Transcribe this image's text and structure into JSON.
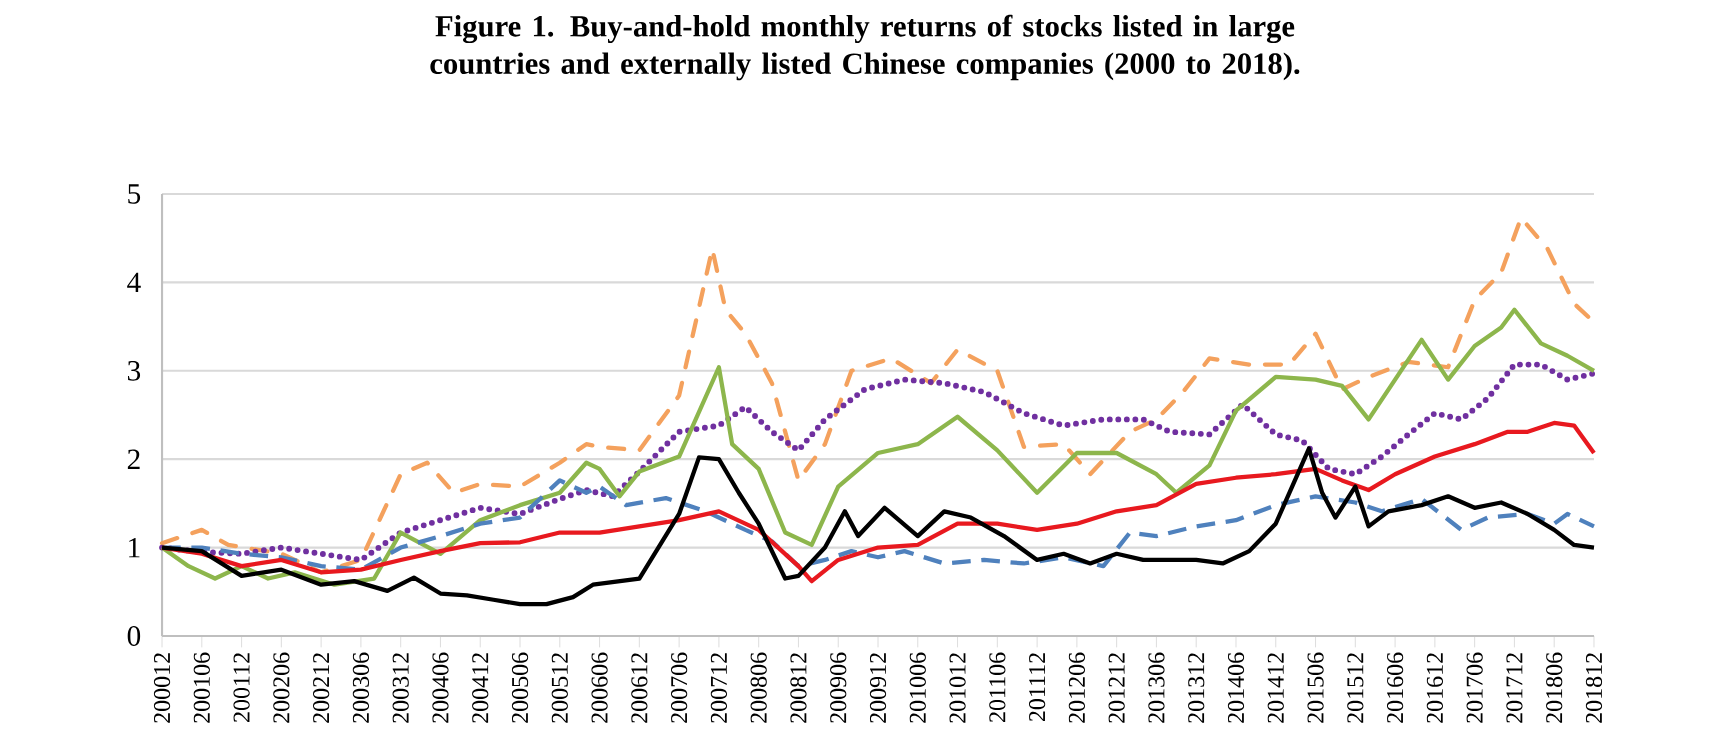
{
  "chart_data": {
    "type": "line",
    "title": "Figure 1. Buy-and-hold monthly returns of stocks listed in large countries and externally listed Chinese companies (2000 to 2018).",
    "xlim": [
      "2000-12",
      "2018-12"
    ],
    "xticks": [
      {
        "value": "2000-12",
        "label": "200012"
      },
      {
        "value": "2001-06",
        "label": "200106"
      },
      {
        "value": "2001-12",
        "label": "200112"
      },
      {
        "value": "2002-06",
        "label": "200206"
      },
      {
        "value": "2002-12",
        "label": "200212"
      },
      {
        "value": "2003-06",
        "label": "200306"
      },
      {
        "value": "2003-12",
        "label": "200312"
      },
      {
        "value": "2004-06",
        "label": "200406"
      },
      {
        "value": "2004-12",
        "label": "200412"
      },
      {
        "value": "2005-06",
        "label": "200506"
      },
      {
        "value": "2005-12",
        "label": "200512"
      },
      {
        "value": "2006-06",
        "label": "200606"
      },
      {
        "value": "2006-12",
        "label": "200612"
      },
      {
        "value": "2007-06",
        "label": "200706"
      },
      {
        "value": "2007-12",
        "label": "200712"
      },
      {
        "value": "2008-06",
        "label": "200806"
      },
      {
        "value": "2008-12",
        "label": "200812"
      },
      {
        "value": "2009-06",
        "label": "200906"
      },
      {
        "value": "2009-12",
        "label": "200912"
      },
      {
        "value": "2010-06",
        "label": "201006"
      },
      {
        "value": "2010-12",
        "label": "201012"
      },
      {
        "value": "2011-06",
        "label": "201106"
      },
      {
        "value": "2011-12",
        "label": "201112"
      },
      {
        "value": "2012-06",
        "label": "201206"
      },
      {
        "value": "2012-12",
        "label": "201212"
      },
      {
        "value": "2013-06",
        "label": "201306"
      },
      {
        "value": "2013-12",
        "label": "201312"
      },
      {
        "value": "2014-06",
        "label": "201406"
      },
      {
        "value": "2014-12",
        "label": "201412"
      },
      {
        "value": "2015-06",
        "label": "201506"
      },
      {
        "value": "2015-12",
        "label": "201512"
      },
      {
        "value": "2016-06",
        "label": "201606"
      },
      {
        "value": "2016-12",
        "label": "201612"
      },
      {
        "value": "2017-06",
        "label": "201706"
      },
      {
        "value": "2017-12",
        "label": "201712"
      },
      {
        "value": "2018-06",
        "label": "201806"
      },
      {
        "value": "2018-12",
        "label": "201812"
      }
    ],
    "ylim": [
      0,
      5
    ],
    "yticks": [
      0,
      1,
      2,
      3,
      4,
      5
    ],
    "grid": "y",
    "marker": "none",
    "series": [
      {
        "color": "#f4a15d",
        "line_style": "dashdot",
        "x": [
          "2000-12",
          "2001-06",
          "2001-10",
          "2002-06",
          "2002-12",
          "2003-06",
          "2003-12",
          "2004-04",
          "2004-08",
          "2004-12",
          "2005-06",
          "2005-12",
          "2006-04",
          "2006-06",
          "2006-12",
          "2007-06",
          "2007-11",
          "2008-01",
          "2008-04",
          "2008-08",
          "2008-12",
          "2009-04",
          "2009-08",
          "2010-02",
          "2010-08",
          "2010-12",
          "2011-06",
          "2011-10",
          "2012-04",
          "2012-08",
          "2013-02",
          "2013-06",
          "2013-10",
          "2014-02",
          "2014-08",
          "2015-02",
          "2015-06",
          "2015-10",
          "2016-02",
          "2016-08",
          "2017-02",
          "2017-06",
          "2017-10",
          "2018-01",
          "2018-05",
          "2018-09",
          "2018-12"
        ],
        "values": [
          1.05,
          1.2,
          1.03,
          0.93,
          0.72,
          0.86,
          1.83,
          1.96,
          1.62,
          1.72,
          1.69,
          1.96,
          2.17,
          2.14,
          2.1,
          2.72,
          4.38,
          3.69,
          3.42,
          2.86,
          1.76,
          2.17,
          3.0,
          3.14,
          2.86,
          3.24,
          3.0,
          2.14,
          2.17,
          1.83,
          2.31,
          2.45,
          2.76,
          3.14,
          3.07,
          3.07,
          3.42,
          2.79,
          2.93,
          3.1,
          3.04,
          3.8,
          4.11,
          4.73,
          4.38,
          3.76,
          3.55
        ]
      },
      {
        "color": "#7030a0",
        "line_style": "dotted",
        "x": [
          "2000-12",
          "2001-06",
          "2001-12",
          "2002-06",
          "2002-12",
          "2003-06",
          "2003-12",
          "2004-06",
          "2004-12",
          "2005-06",
          "2005-12",
          "2006-04",
          "2006-08",
          "2006-12",
          "2007-06",
          "2007-12",
          "2008-04",
          "2008-08",
          "2008-12",
          "2009-04",
          "2009-10",
          "2010-04",
          "2010-10",
          "2011-04",
          "2011-10",
          "2012-04",
          "2012-10",
          "2013-04",
          "2013-08",
          "2014-02",
          "2014-07",
          "2014-12",
          "2015-04",
          "2015-08",
          "2015-12",
          "2016-04",
          "2016-08",
          "2016-12",
          "2017-04",
          "2017-08",
          "2017-12",
          "2018-04",
          "2018-08",
          "2018-12"
        ],
        "values": [
          1.0,
          0.95,
          0.93,
          1.0,
          0.93,
          0.86,
          1.17,
          1.31,
          1.45,
          1.38,
          1.55,
          1.65,
          1.58,
          1.86,
          2.31,
          2.38,
          2.59,
          2.31,
          2.1,
          2.45,
          2.79,
          2.9,
          2.86,
          2.76,
          2.52,
          2.38,
          2.45,
          2.45,
          2.31,
          2.28,
          2.62,
          2.28,
          2.21,
          1.89,
          1.83,
          2.03,
          2.28,
          2.52,
          2.45,
          2.69,
          3.07,
          3.07,
          2.9,
          2.97
        ]
      },
      {
        "color": "#8db64c",
        "line_style": "solid",
        "x": [
          "2000-12",
          "2001-04",
          "2001-08",
          "2001-12",
          "2002-04",
          "2002-08",
          "2003-02",
          "2003-08",
          "2003-12",
          "2004-06",
          "2004-12",
          "2005-06",
          "2005-12",
          "2006-04",
          "2006-06",
          "2006-09",
          "2006-12",
          "2007-06",
          "2007-12",
          "2008-02",
          "2008-06",
          "2008-10",
          "2009-02",
          "2009-06",
          "2009-12",
          "2010-06",
          "2010-12",
          "2011-06",
          "2011-12",
          "2012-06",
          "2012-12",
          "2013-06",
          "2013-09",
          "2014-02",
          "2014-06",
          "2014-12",
          "2015-06",
          "2015-10",
          "2016-02",
          "2016-06",
          "2016-10",
          "2017-02",
          "2017-06",
          "2017-10",
          "2017-12",
          "2018-04",
          "2018-08",
          "2018-12"
        ],
        "values": [
          1.0,
          0.79,
          0.65,
          0.79,
          0.65,
          0.72,
          0.58,
          0.65,
          1.17,
          0.93,
          1.31,
          1.48,
          1.62,
          1.96,
          1.89,
          1.58,
          1.86,
          2.03,
          3.04,
          2.17,
          1.89,
          1.17,
          1.03,
          1.69,
          2.07,
          2.17,
          2.48,
          2.1,
          1.62,
          2.07,
          2.07,
          1.83,
          1.62,
          1.93,
          2.55,
          2.93,
          2.9,
          2.83,
          2.45,
          2.9,
          3.35,
          2.9,
          3.28,
          3.49,
          3.69,
          3.31,
          3.17,
          3.0
        ]
      },
      {
        "color": "#4f81bd",
        "line_style": "dashed",
        "x": [
          "2000-12",
          "2001-06",
          "2001-12",
          "2002-06",
          "2002-12",
          "2003-06",
          "2003-12",
          "2004-06",
          "2004-12",
          "2005-06",
          "2005-12",
          "2006-04",
          "2006-06",
          "2006-10",
          "2007-04",
          "2007-10",
          "2008-04",
          "2008-08",
          "2008-12",
          "2009-04",
          "2009-08",
          "2009-12",
          "2010-04",
          "2010-10",
          "2011-04",
          "2011-10",
          "2012-04",
          "2012-10",
          "2013-02",
          "2013-06",
          "2013-12",
          "2014-06",
          "2014-12",
          "2015-06",
          "2015-12",
          "2016-04",
          "2016-10",
          "2017-04",
          "2017-08",
          "2018-02",
          "2018-06",
          "2018-08",
          "2018-12"
        ],
        "values": [
          1.0,
          1.0,
          0.93,
          0.89,
          0.79,
          0.75,
          1.0,
          1.13,
          1.27,
          1.34,
          1.76,
          1.62,
          1.69,
          1.48,
          1.56,
          1.41,
          1.2,
          1.07,
          0.79,
          0.86,
          0.96,
          0.89,
          0.96,
          0.82,
          0.86,
          0.82,
          0.89,
          0.79,
          1.17,
          1.13,
          1.24,
          1.31,
          1.48,
          1.58,
          1.51,
          1.41,
          1.55,
          1.2,
          1.34,
          1.38,
          1.27,
          1.38,
          1.24
        ]
      },
      {
        "color": "#e8191f",
        "line_style": "solid",
        "x": [
          "2000-12",
          "2001-06",
          "2001-12",
          "2002-06",
          "2002-12",
          "2003-06",
          "2003-12",
          "2004-06",
          "2004-12",
          "2005-06",
          "2005-12",
          "2006-06",
          "2006-12",
          "2007-06",
          "2007-12",
          "2008-06",
          "2008-12",
          "2009-02",
          "2009-06",
          "2009-12",
          "2010-06",
          "2010-12",
          "2011-06",
          "2011-12",
          "2012-06",
          "2012-12",
          "2013-06",
          "2013-12",
          "2014-06",
          "2014-12",
          "2015-06",
          "2015-10",
          "2016-02",
          "2016-06",
          "2016-12",
          "2017-06",
          "2017-11",
          "2018-02",
          "2018-06",
          "2018-09",
          "2018-12"
        ],
        "values": [
          1.0,
          0.93,
          0.79,
          0.86,
          0.72,
          0.75,
          0.86,
          0.96,
          1.05,
          1.06,
          1.17,
          1.17,
          1.24,
          1.31,
          1.41,
          1.2,
          0.79,
          0.62,
          0.86,
          1.0,
          1.03,
          1.27,
          1.27,
          1.2,
          1.27,
          1.41,
          1.48,
          1.72,
          1.79,
          1.83,
          1.89,
          1.76,
          1.65,
          1.83,
          2.03,
          2.17,
          2.31,
          2.31,
          2.41,
          2.38,
          2.07
        ]
      },
      {
        "color": "#000000",
        "line_style": "solid",
        "x": [
          "2000-12",
          "2001-06",
          "2001-12",
          "2002-06",
          "2002-12",
          "2003-05",
          "2003-10",
          "2004-02",
          "2004-06",
          "2004-10",
          "2005-02",
          "2005-06",
          "2005-10",
          "2006-02",
          "2006-05",
          "2006-12",
          "2007-06",
          "2007-09",
          "2007-12",
          "2008-03",
          "2008-06",
          "2008-10",
          "2008-12",
          "2009-04",
          "2009-07",
          "2009-09",
          "2010-01",
          "2010-06",
          "2010-10",
          "2011-02",
          "2011-07",
          "2011-12",
          "2012-04",
          "2012-08",
          "2012-12",
          "2013-04",
          "2013-08",
          "2013-12",
          "2014-04",
          "2014-08",
          "2014-12",
          "2015-05",
          "2015-07",
          "2015-09",
          "2015-12",
          "2016-02",
          "2016-05",
          "2016-10",
          "2017-02",
          "2017-06",
          "2017-10",
          "2018-02",
          "2018-06",
          "2018-09",
          "2018-12"
        ],
        "values": [
          1.0,
          0.96,
          0.68,
          0.75,
          0.58,
          0.62,
          0.51,
          0.66,
          0.48,
          0.46,
          0.41,
          0.36,
          0.36,
          0.44,
          0.58,
          0.65,
          1.38,
          2.02,
          2.0,
          1.62,
          1.27,
          0.65,
          0.68,
          1.0,
          1.41,
          1.13,
          1.45,
          1.13,
          1.41,
          1.34,
          1.13,
          0.86,
          0.93,
          0.82,
          0.93,
          0.86,
          0.86,
          0.86,
          0.82,
          0.96,
          1.27,
          2.12,
          1.62,
          1.34,
          1.69,
          1.24,
          1.41,
          1.48,
          1.58,
          1.45,
          1.51,
          1.38,
          1.2,
          1.03,
          1.0
        ]
      }
    ]
  }
}
